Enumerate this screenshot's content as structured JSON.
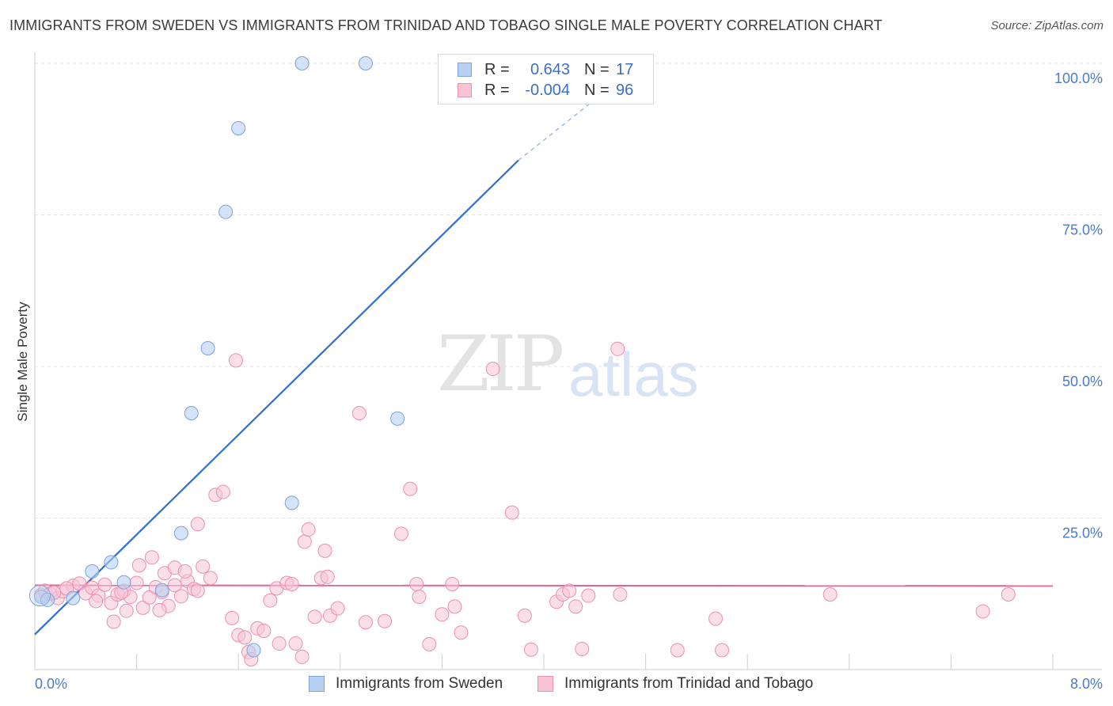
{
  "header": {
    "title": "IMMIGRANTS FROM SWEDEN VS IMMIGRANTS FROM TRINIDAD AND TOBAGO SINGLE MALE POVERTY CORRELATION CHART",
    "source": "Source: ZipAtlas.com"
  },
  "watermark": {
    "zip": "ZIP",
    "atlas": "atlas"
  },
  "legend": {
    "rows": [
      {
        "r_label": "R =",
        "r_value": "0.643",
        "n_label": "N =",
        "n_value": "17"
      },
      {
        "r_label": "R =",
        "r_value": "-0.004",
        "n_label": "N =",
        "n_value": "96"
      }
    ]
  },
  "bottom_legend": {
    "sweden": "Immigrants from Sweden",
    "trinidad": "Immigrants from Trinidad and Tobago"
  },
  "colors": {
    "sweden_fill": "#b8d0f2",
    "sweden_stroke": "#7aa3df",
    "sweden_line": "#2f6fd0",
    "trinidad_fill": "#f8c4d5",
    "trinidad_stroke": "#ec8fb0",
    "trinidad_line": "#e4648f"
  },
  "chart_data": {
    "type": "scatter",
    "title": "IMMIGRANTS FROM SWEDEN VS IMMIGRANTS FROM TRINIDAD AND TOBAGO SINGLE MALE POVERTY CORRELATION CHART",
    "xlabel": "",
    "ylabel": "Single Male Poverty",
    "xlim": [
      0,
      8
    ],
    "ylim": [
      0,
      100
    ],
    "x_tick_labels": [
      "0.0%",
      "8.0%"
    ],
    "y_ticks": [
      25,
      50,
      75,
      100
    ],
    "y_tick_labels": [
      "25.0%",
      "50.0%",
      "75.0%",
      "100.0%"
    ],
    "grid": true,
    "series": [
      {
        "name": "Immigrants from Sweden",
        "R": 0.643,
        "N": 17,
        "points": [
          [
            0.05,
            12.0
          ],
          [
            0.1,
            11.5
          ],
          [
            0.3,
            11.8
          ],
          [
            0.45,
            16.2
          ],
          [
            0.6,
            17.7
          ],
          [
            0.7,
            14.4
          ],
          [
            1.0,
            13.1
          ],
          [
            1.15,
            22.5
          ],
          [
            1.23,
            42.3
          ],
          [
            1.36,
            53.0
          ],
          [
            1.5,
            75.5
          ],
          [
            1.6,
            89.3
          ],
          [
            1.72,
            3.2
          ],
          [
            2.02,
            27.5
          ],
          [
            2.1,
            100.0
          ],
          [
            2.6,
            100.0
          ],
          [
            2.85,
            41.4
          ]
        ],
        "trend": {
          "x": [
            0,
            3.8
          ],
          "y": [
            5.8,
            84.0
          ],
          "dashed_to": [
            3.8,
            4.4
          ],
          "dashed_y": [
            84.0,
            94.0
          ]
        }
      },
      {
        "name": "Immigrants from Trinidad and Tobago",
        "R": -0.004,
        "N": 96,
        "points": [
          [
            0.05,
            12.3
          ],
          [
            0.08,
            13.0
          ],
          [
            0.12,
            12.5
          ],
          [
            0.18,
            11.8
          ],
          [
            0.22,
            12.9
          ],
          [
            0.3,
            13.8
          ],
          [
            0.35,
            14.2
          ],
          [
            0.4,
            12.6
          ],
          [
            0.45,
            13.5
          ],
          [
            0.5,
            12.2
          ],
          [
            0.55,
            14.0
          ],
          [
            0.6,
            11.0
          ],
          [
            0.65,
            12.4
          ],
          [
            0.7,
            13.0
          ],
          [
            0.75,
            12.0
          ],
          [
            0.8,
            14.3
          ],
          [
            0.85,
            10.2
          ],
          [
            0.9,
            11.9
          ],
          [
            0.95,
            13.6
          ],
          [
            1.0,
            12.8
          ],
          [
            1.05,
            10.5
          ],
          [
            1.1,
            13.9
          ],
          [
            1.15,
            12.1
          ],
          [
            1.2,
            14.6
          ],
          [
            1.25,
            13.3
          ],
          [
            0.62,
            7.9
          ],
          [
            0.72,
            9.7
          ],
          [
            0.82,
            17.2
          ],
          [
            0.92,
            18.5
          ],
          [
            1.02,
            15.9
          ],
          [
            1.1,
            16.8
          ],
          [
            1.18,
            16.2
          ],
          [
            1.28,
            13.0
          ],
          [
            1.32,
            17.0
          ],
          [
            1.38,
            15.1
          ],
          [
            1.28,
            24.0
          ],
          [
            1.42,
            28.8
          ],
          [
            1.48,
            29.3
          ],
          [
            1.55,
            8.5
          ],
          [
            1.6,
            5.7
          ],
          [
            1.65,
            5.3
          ],
          [
            1.68,
            2.9
          ],
          [
            1.7,
            1.7
          ],
          [
            1.75,
            6.8
          ],
          [
            1.8,
            6.4
          ],
          [
            1.85,
            11.4
          ],
          [
            1.9,
            13.4
          ],
          [
            1.92,
            4.3
          ],
          [
            1.98,
            14.3
          ],
          [
            2.02,
            14.1
          ],
          [
            2.05,
            4.3
          ],
          [
            2.1,
            2.1
          ],
          [
            2.12,
            21.1
          ],
          [
            2.15,
            23.1
          ],
          [
            2.2,
            8.7
          ],
          [
            2.25,
            15.1
          ],
          [
            2.28,
            19.6
          ],
          [
            2.3,
            15.3
          ],
          [
            2.32,
            8.9
          ],
          [
            2.38,
            10.1
          ],
          [
            1.58,
            51.0
          ],
          [
            2.55,
            42.3
          ],
          [
            2.6,
            7.8
          ],
          [
            2.88,
            22.4
          ],
          [
            2.95,
            29.8
          ],
          [
            3.0,
            14.1
          ],
          [
            3.02,
            12.0
          ],
          [
            3.1,
            4.2
          ],
          [
            3.2,
            9.1
          ],
          [
            3.28,
            14.1
          ],
          [
            3.3,
            10.4
          ],
          [
            3.35,
            6.1
          ],
          [
            3.6,
            49.6
          ],
          [
            3.75,
            25.9
          ],
          [
            3.85,
            8.9
          ],
          [
            3.9,
            3.3
          ],
          [
            4.1,
            11.2
          ],
          [
            4.15,
            12.4
          ],
          [
            4.2,
            13.0
          ],
          [
            4.25,
            10.4
          ],
          [
            4.3,
            3.4
          ],
          [
            4.35,
            12.2
          ],
          [
            4.58,
            52.9
          ],
          [
            4.6,
            12.4
          ],
          [
            5.05,
            3.2
          ],
          [
            5.35,
            8.4
          ],
          [
            5.4,
            3.2
          ],
          [
            6.25,
            12.4
          ],
          [
            7.45,
            9.6
          ],
          [
            7.65,
            12.4
          ],
          [
            0.15,
            12.7
          ],
          [
            0.25,
            13.4
          ],
          [
            0.48,
            11.3
          ],
          [
            0.68,
            12.7
          ],
          [
            0.98,
            9.8
          ],
          [
            2.75,
            8.0
          ]
        ],
        "trend": {
          "x": [
            0,
            8
          ],
          "y": [
            13.9,
            13.8
          ]
        }
      }
    ]
  }
}
